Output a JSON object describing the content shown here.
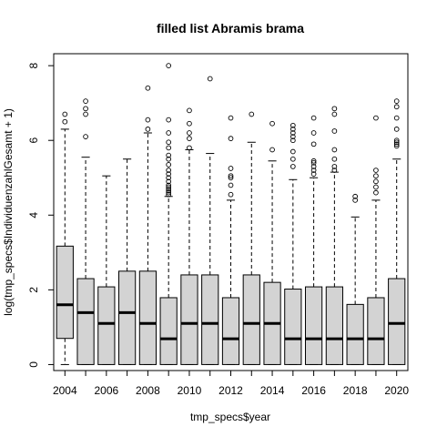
{
  "chart_data": {
    "type": "boxplot",
    "title": "filled list Abramis brama",
    "xlabel": "tmp_specs$year",
    "ylabel": "log(tmp_specs$IndividuenzahlGesamt + 1)",
    "categories": [
      "2004",
      "2005",
      "2006",
      "2007",
      "2008",
      "2009",
      "2010",
      "2011",
      "2012",
      "2013",
      "2014",
      "2015",
      "2016",
      "2017",
      "2018",
      "2019",
      "2020"
    ],
    "x_tick_labels": [
      "2004",
      "2006",
      "2008",
      "2010",
      "2012",
      "2014",
      "2016",
      "2018",
      "2020"
    ],
    "y_ticks": [
      0,
      2,
      4,
      6,
      8
    ],
    "ylim": [
      -0.16,
      8.32
    ],
    "box_fill": "#d3d3d3",
    "boxes": [
      {
        "year": "2004",
        "min": 0,
        "q1": 0.7,
        "median": 1.6,
        "q3": 3.17,
        "max": 6.3,
        "outliers": [
          6.5,
          6.7
        ]
      },
      {
        "year": "2005",
        "min": 0,
        "q1": 0,
        "median": 1.39,
        "q3": 2.3,
        "max": 5.55,
        "outliers": [
          6.1,
          6.7,
          6.85,
          7.05
        ]
      },
      {
        "year": "2006",
        "min": 0,
        "q1": 0,
        "median": 1.1,
        "q3": 2.08,
        "max": 5.05,
        "outliers": []
      },
      {
        "year": "2007",
        "min": 0,
        "q1": 0,
        "median": 1.39,
        "q3": 2.5,
        "max": 5.5,
        "outliers": []
      },
      {
        "year": "2008",
        "min": 0,
        "q1": 0,
        "median": 1.1,
        "q3": 2.5,
        "max": 6.2,
        "outliers": [
          6.3,
          6.55,
          7.4
        ]
      },
      {
        "year": "2009",
        "min": 0,
        "q1": 0,
        "median": 0.69,
        "q3": 1.79,
        "max": 4.5,
        "outliers": [
          4.55,
          4.6,
          4.65,
          4.7,
          4.75,
          4.8,
          4.9,
          5.0,
          5.1,
          5.2,
          5.35,
          5.5,
          5.6,
          5.8,
          5.95,
          6.2,
          6.55,
          8.0
        ]
      },
      {
        "year": "2010",
        "min": 0,
        "q1": 0,
        "median": 1.1,
        "q3": 2.4,
        "max": 5.75,
        "outliers": [
          5.8,
          6.05,
          6.2,
          6.45,
          6.8
        ]
      },
      {
        "year": "2011",
        "min": 0,
        "q1": 0,
        "median": 1.1,
        "q3": 2.4,
        "max": 5.65,
        "outliers": [
          7.65
        ]
      },
      {
        "year": "2012",
        "min": 0,
        "q1": 0,
        "median": 0.69,
        "q3": 1.79,
        "max": 4.4,
        "outliers": [
          4.55,
          4.8,
          5.0,
          5.05,
          5.25,
          6.05,
          6.6
        ]
      },
      {
        "year": "2013",
        "min": 0,
        "q1": 0,
        "median": 1.1,
        "q3": 2.4,
        "max": 5.95,
        "outliers": [
          6.7
        ]
      },
      {
        "year": "2014",
        "min": 0,
        "q1": 0,
        "median": 1.1,
        "q3": 2.2,
        "max": 5.45,
        "outliers": [
          5.75,
          6.45
        ]
      },
      {
        "year": "2015",
        "min": 0,
        "q1": 0,
        "median": 0.69,
        "q3": 2.02,
        "max": 4.95,
        "outliers": [
          5.3,
          5.5,
          5.7,
          6.0,
          6.1,
          6.2,
          6.3,
          6.4
        ]
      },
      {
        "year": "2016",
        "min": 0,
        "q1": 0,
        "median": 0.69,
        "q3": 2.08,
        "max": 5.0,
        "outliers": [
          5.1,
          5.2,
          5.3,
          5.4,
          5.45,
          5.9,
          6.2,
          6.6
        ]
      },
      {
        "year": "2017",
        "min": 0,
        "q1": 0,
        "median": 0.69,
        "q3": 2.08,
        "max": 5.15,
        "outliers": [
          5.2,
          5.3,
          5.5,
          5.75,
          6.25,
          6.7,
          6.85
        ]
      },
      {
        "year": "2018",
        "min": 0,
        "q1": 0,
        "median": 0.69,
        "q3": 1.61,
        "max": 3.95,
        "outliers": [
          4.4,
          4.5
        ]
      },
      {
        "year": "2019",
        "min": 0,
        "q1": 0,
        "median": 0.69,
        "q3": 1.79,
        "max": 4.4,
        "outliers": [
          4.6,
          4.75,
          4.9,
          5.05,
          5.2,
          6.6
        ]
      },
      {
        "year": "2020",
        "min": 0,
        "q1": 0,
        "median": 1.1,
        "q3": 2.3,
        "max": 5.5,
        "outliers": [
          5.85,
          5.9,
          5.95,
          6.0,
          6.3,
          6.6,
          6.9,
          7.05
        ]
      }
    ]
  }
}
